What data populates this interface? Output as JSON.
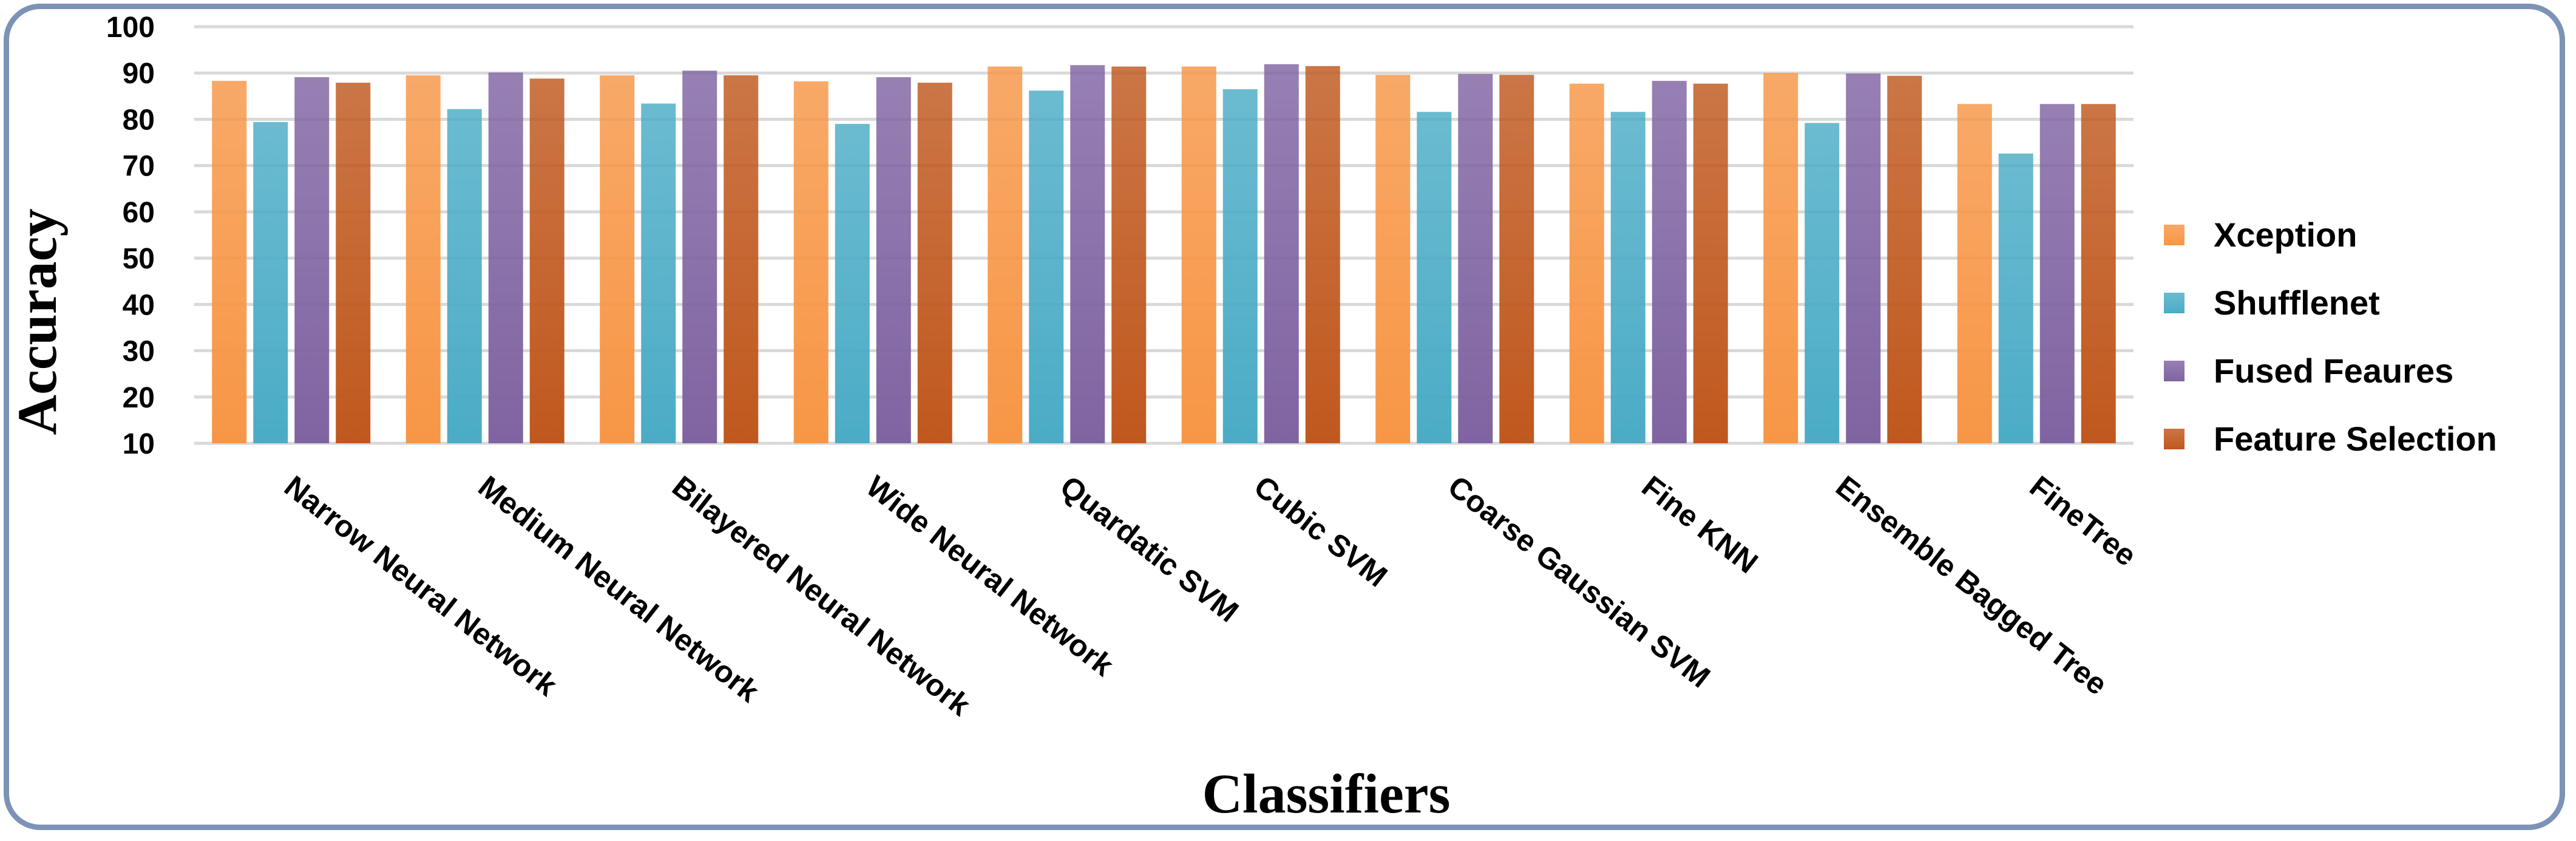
{
  "chart_data": {
    "type": "bar",
    "title": "",
    "xlabel": "Classifiers",
    "ylabel": "Accuracy",
    "ylim": [
      10,
      100
    ],
    "yticks": [
      10,
      20,
      30,
      40,
      50,
      60,
      70,
      80,
      90,
      100
    ],
    "grid": true,
    "legend_position": "right",
    "categories": [
      "Narrow Neural Network",
      "Medium Neural Network",
      "Bilayered Neural Network",
      "Wide Neural Network",
      "Quardatic SVM",
      "Cubic SVM",
      "Coarse Gaussian SVM",
      "Fine KNN",
      "Ensemble Bagged Tree",
      "FineTree"
    ],
    "series": [
      {
        "name": "Xception",
        "color": "#f79646",
        "values": [
          88.3,
          89.5,
          89.5,
          88.2,
          91.4,
          91.4,
          89.6,
          87.7,
          90.0,
          83.3
        ]
      },
      {
        "name": "Shufflenet",
        "color": "#4bacc6",
        "values": [
          79.4,
          82.2,
          83.4,
          79.0,
          86.2,
          86.5,
          81.6,
          81.6,
          79.2,
          72.6
        ]
      },
      {
        "name": "Fused Feaures",
        "color": "#8064a2",
        "values": [
          89.1,
          90.1,
          90.5,
          89.1,
          91.7,
          91.9,
          89.8,
          88.3,
          89.9,
          83.3
        ]
      },
      {
        "name": "Feature Selection",
        "color": "#c0581e",
        "values": [
          87.9,
          88.8,
          89.5,
          87.9,
          91.4,
          91.5,
          89.6,
          87.7,
          89.4,
          83.3
        ]
      }
    ]
  }
}
